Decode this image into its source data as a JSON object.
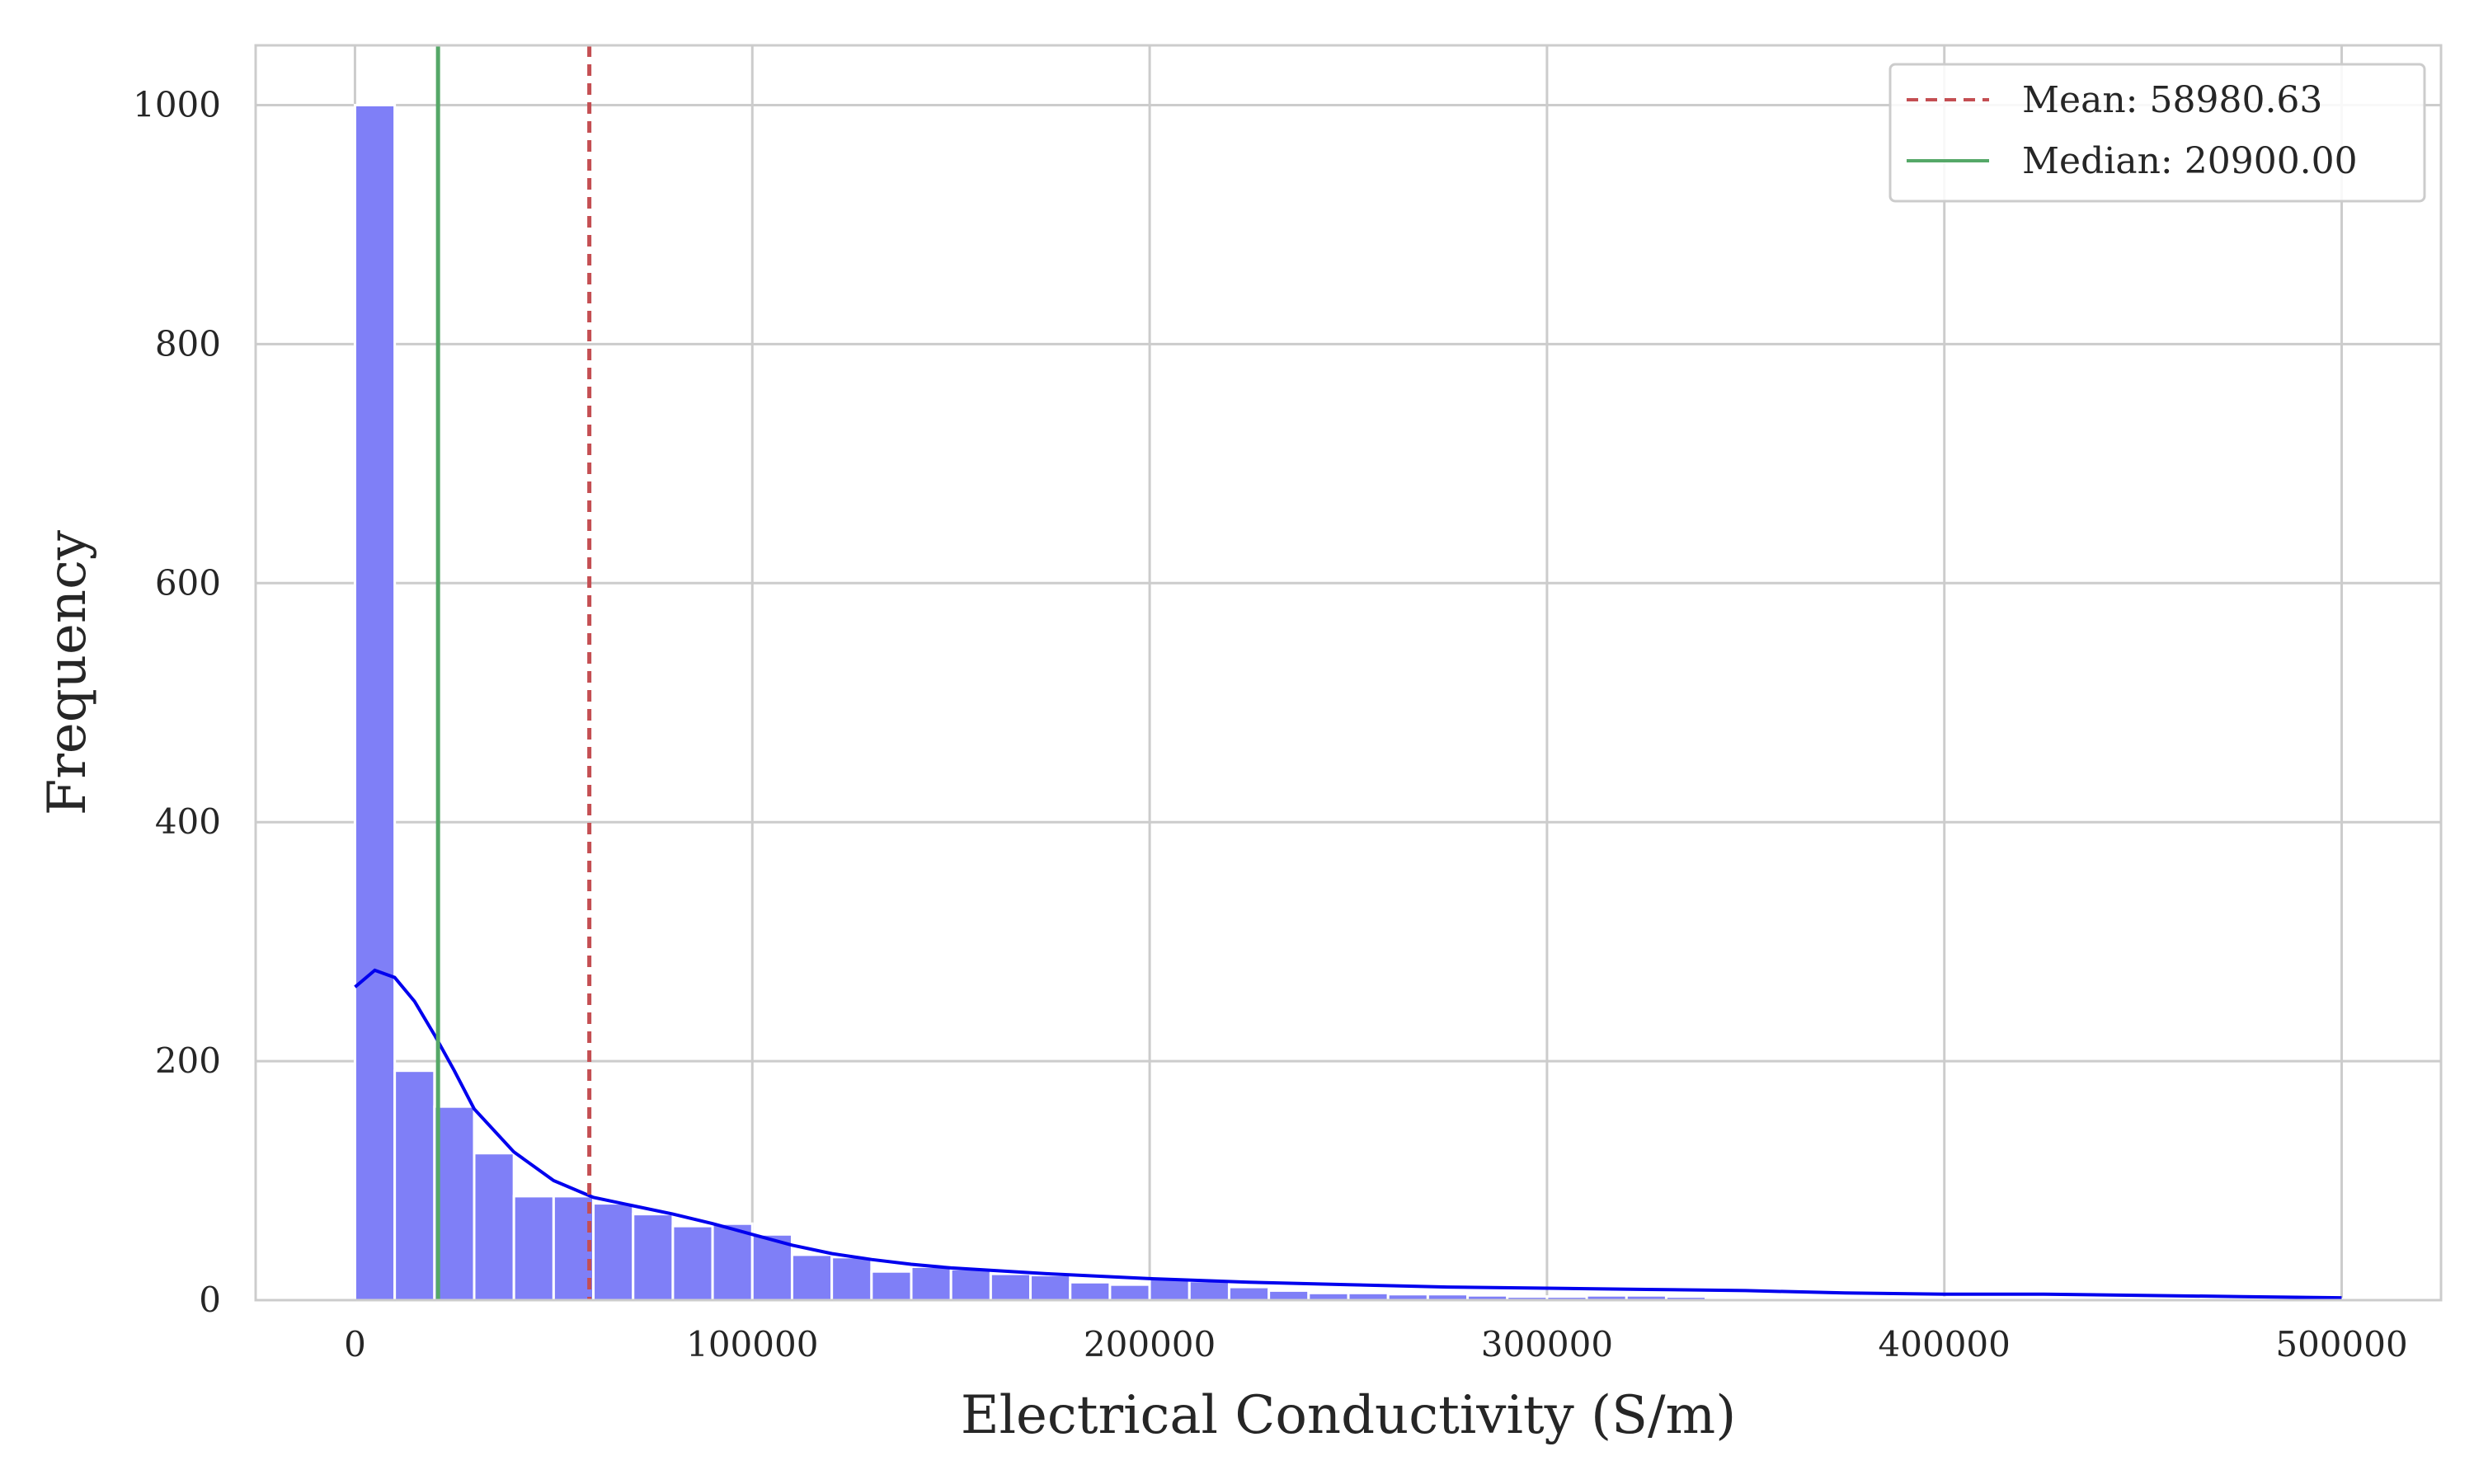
{
  "chart_data": {
    "type": "bar",
    "title": "",
    "xlabel": "Electrical Conductivity (S/m)",
    "ylabel": "Frequency",
    "xlim": [
      -25000,
      525000
    ],
    "ylim": [
      0,
      1050
    ],
    "xticks": [
      0,
      100000,
      200000,
      300000,
      400000,
      500000
    ],
    "xtick_labels": [
      "0",
      "100000",
      "200000",
      "300000",
      "400000",
      "500000"
    ],
    "yticks": [
      0,
      200,
      400,
      600,
      800,
      1000
    ],
    "ytick_labels": [
      "0",
      "200",
      "400",
      "600",
      "800",
      "1000"
    ],
    "grid": true,
    "legend_position": "top-right",
    "bin_width": 10000,
    "bin_start": 0,
    "series": [
      {
        "kind": "histogram",
        "color": "#7f7ff7",
        "values": [
          1000,
          192,
          162,
          123,
          87,
          87,
          81,
          72,
          62,
          64,
          55,
          38,
          36,
          24,
          28,
          26,
          22,
          21,
          15,
          13,
          18,
          16,
          11,
          8,
          6,
          6,
          5,
          5,
          4,
          3,
          3,
          4,
          4,
          3,
          2,
          2,
          2,
          2,
          2,
          2,
          1,
          1,
          1,
          1,
          1,
          1,
          1,
          1,
          1,
          1
        ]
      },
      {
        "kind": "kde",
        "color": "#0000ee",
        "x": [
          0,
          5000,
          10000,
          15000,
          20000,
          25000,
          30000,
          40000,
          50000,
          60000,
          70000,
          80000,
          90000,
          100000,
          110000,
          120000,
          130000,
          140000,
          150000,
          175000,
          200000,
          225000,
          250000,
          275000,
          300000,
          325000,
          350000,
          375000,
          400000,
          425000,
          450000,
          475000,
          500000
        ],
        "y": [
          262,
          276,
          270,
          250,
          222,
          192,
          160,
          124,
          100,
          86,
          79,
          72,
          64,
          55,
          46,
          39,
          34,
          30,
          27,
          22,
          18,
          15,
          13,
          11,
          10,
          9,
          8,
          6,
          5,
          5,
          4,
          3,
          2
        ]
      }
    ],
    "reference_lines": [
      {
        "label": "Mean: 58980.63",
        "x": 58980.63,
        "color": "#c44e52",
        "style": "dashed"
      },
      {
        "label": "Median: 20900.00",
        "x": 20900,
        "color": "#55a868",
        "style": "solid"
      }
    ]
  }
}
